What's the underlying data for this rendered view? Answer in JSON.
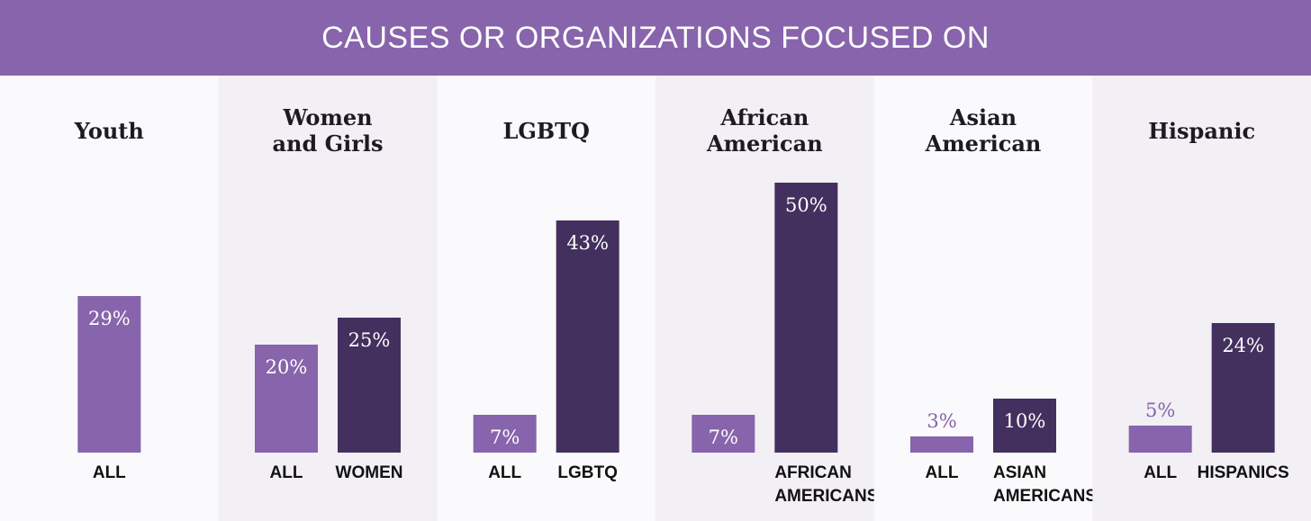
{
  "banner": {
    "title": "CAUSES OR ORGANIZATIONS FOCUSED ON"
  },
  "colors": {
    "all_bar": "#8764ab",
    "group_bar": "#43305f",
    "panel_light": "#faf9fc",
    "panel_dark": "#f2eff5",
    "label_on_bar": "#ffffff",
    "label_above_bar": "#8764ab"
  },
  "chart_data": {
    "type": "bar",
    "unit": "%",
    "ylim": [
      0,
      50
    ],
    "panels": [
      {
        "title": [
          "Youth"
        ],
        "bars": [
          {
            "label": [
              "ALL"
            ],
            "value": 29,
            "display": "29%",
            "kind": "all"
          }
        ]
      },
      {
        "title": [
          "Women",
          "and Girls"
        ],
        "bars": [
          {
            "label": [
              "ALL"
            ],
            "value": 20,
            "display": "20%",
            "kind": "all"
          },
          {
            "label": [
              "WOMEN"
            ],
            "value": 25,
            "display": "25%",
            "kind": "group"
          }
        ]
      },
      {
        "title": [
          "LGBTQ"
        ],
        "bars": [
          {
            "label": [
              "ALL"
            ],
            "value": 7,
            "display": "7%",
            "kind": "all"
          },
          {
            "label": [
              "LGBTQ"
            ],
            "value": 43,
            "display": "43%",
            "kind": "group"
          }
        ]
      },
      {
        "title": [
          "African",
          "American"
        ],
        "bars": [
          {
            "label": [],
            "value": 7,
            "display": "7%",
            "kind": "all"
          },
          {
            "label": [
              "AFRICAN",
              "AMERICANS"
            ],
            "value": 50,
            "display": "50%",
            "kind": "group"
          }
        ]
      },
      {
        "title": [
          "Asian",
          "American"
        ],
        "bars": [
          {
            "label": [
              "ALL"
            ],
            "value": 3,
            "display": "3%",
            "kind": "all"
          },
          {
            "label": [
              "ASIAN",
              "AMERICANS"
            ],
            "value": 10,
            "display": "10%",
            "kind": "group"
          }
        ]
      },
      {
        "title": [
          "Hispanic"
        ],
        "bars": [
          {
            "label": [
              "ALL"
            ],
            "value": 5,
            "display": "5%",
            "kind": "all"
          },
          {
            "label": [
              "HISPANICS"
            ],
            "value": 24,
            "display": "24%",
            "kind": "group"
          }
        ]
      }
    ]
  }
}
